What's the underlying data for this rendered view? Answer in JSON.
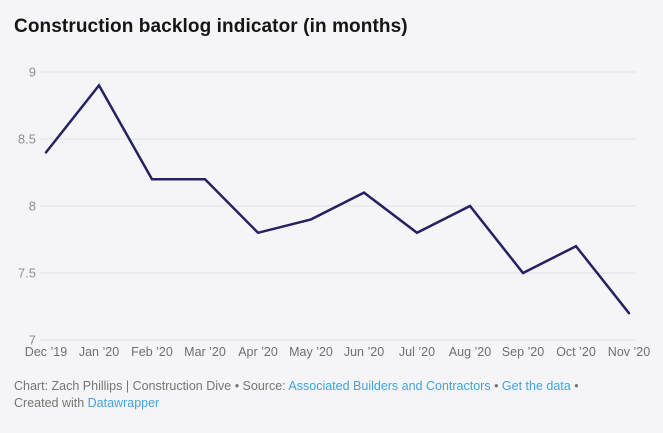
{
  "theme": {
    "background": "#f5f5f7",
    "link_color": "#45a2d9",
    "grid_color": "#e2e2e6",
    "y_label_color": "#8e8e93",
    "x_label_color": "#6f6f73"
  },
  "header": {
    "title": "Construction backlog indicator (in months)"
  },
  "chart_data": {
    "type": "line",
    "title": "Construction backlog indicator (in months)",
    "categories": [
      "Dec ’19",
      "Jan ’20",
      "Feb ’20",
      "Mar ’20",
      "Apr ’20",
      "May ’20",
      "Jun ’20",
      "Jul ’20",
      "Aug ’20",
      "Sep ’20",
      "Oct ’20",
      "Nov ’20"
    ],
    "values": [
      8.4,
      8.9,
      8.2,
      8.2,
      7.8,
      7.9,
      8.1,
      7.8,
      8.0,
      7.5,
      7.7,
      7.2
    ],
    "y_ticks": [
      7,
      7.5,
      8,
      8.5,
      9
    ],
    "y_tick_labels": [
      "7",
      "7.5",
      "8",
      "8.5",
      "9"
    ],
    "ylim": [
      7,
      9
    ],
    "xlabel": "",
    "ylabel": "",
    "grid": true,
    "legend": "none",
    "line_color": "#262262"
  },
  "footer": {
    "line1_prefix": "Chart: Zach Phillips | Construction Dive • Source: ",
    "source_link": "Associated Builders and Contractors",
    "sep1": " • ",
    "get_data_link": "Get the data",
    "sep2": " •",
    "line2_prefix": "Created with ",
    "datawrapper_link": "Datawrapper"
  }
}
